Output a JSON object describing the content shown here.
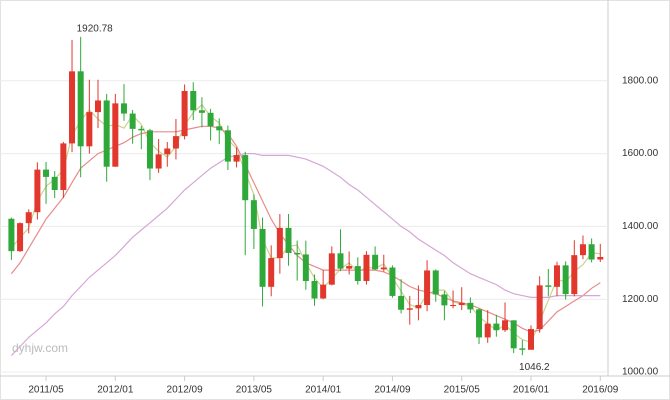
{
  "chart_data": {
    "type": "candlestick",
    "watermark": "dyhjw.com",
    "annotations": [
      "1920.78",
      "1046.2"
    ],
    "categories": [
      null,
      null,
      null,
      null,
      "2011/05",
      null,
      null,
      null,
      null,
      null,
      null,
      null,
      "2012/01",
      null,
      null,
      null,
      null,
      null,
      null,
      null,
      "2012/09",
      null,
      null,
      null,
      null,
      null,
      null,
      null,
      "2013/05",
      null,
      null,
      null,
      null,
      null,
      null,
      null,
      "2014/01",
      null,
      null,
      null,
      null,
      null,
      null,
      null,
      "2014/09",
      null,
      null,
      null,
      null,
      null,
      null,
      null,
      "2015/05",
      null,
      null,
      null,
      null,
      null,
      null,
      null,
      "2016/01",
      null,
      null,
      null,
      null,
      null,
      null,
      null,
      "2016/09"
    ],
    "open": [
      1421,
      1332,
      1409,
      1439,
      1556,
      1536,
      1500,
      1628,
      1826,
      1620,
      1714,
      1746,
      1564,
      1738,
      1710,
      1668,
      1664,
      1559,
      1598,
      1614,
      1648,
      1772,
      1719,
      1712,
      1675,
      1664,
      1578,
      1596,
      1472,
      1393,
      1234,
      1313,
      1396,
      1327,
      1323,
      1250,
      1202,
      1240,
      1326,
      1284,
      1291,
      1250,
      1322,
      1282,
      1287,
      1209,
      1171,
      1175,
      1184,
      1279,
      1213,
      1183,
      1184,
      1190,
      1172,
      1095,
      1133,
      1115,
      1142,
      1065,
      1061,
      1118,
      1238,
      1234,
      1293,
      1214,
      1321,
      1351,
      1309
    ],
    "high": [
      1424,
      1411,
      1447,
      1576,
      1577,
      1552,
      1632,
      1912,
      1920.78,
      1803,
      1803,
      1764,
      1764,
      1791,
      1720,
      1676,
      1668,
      1640,
      1632,
      1695,
      1790,
      1796,
      1755,
      1723,
      1697,
      1677,
      1617,
      1605,
      1488,
      1424,
      1348,
      1434,
      1434,
      1361,
      1361,
      1268,
      1280,
      1345,
      1392,
      1331,
      1315,
      1332,
      1345,
      1322,
      1293,
      1255,
      1209,
      1238,
      1307,
      1282,
      1223,
      1224,
      1233,
      1205,
      1175,
      1170,
      1157,
      1191,
      1142,
      1088,
      1128,
      1263,
      1283,
      1303,
      1304,
      1362,
      1375,
      1367,
      1352
    ],
    "low": [
      1308,
      1330,
      1381,
      1419,
      1462,
      1478,
      1478,
      1604,
      1535,
      1600,
      1670,
      1523,
      1564,
      1690,
      1627,
      1612,
      1527,
      1547,
      1564,
      1584,
      1639,
      1692,
      1672,
      1636,
      1626,
      1555,
      1562,
      1321,
      1338,
      1180,
      1208,
      1270,
      1292,
      1251,
      1226,
      1182,
      1200,
      1238,
      1277,
      1268,
      1240,
      1240,
      1280,
      1276,
      1204,
      1161,
      1130,
      1142,
      1167,
      1193,
      1142,
      1175,
      1170,
      1162,
      1077,
      1080,
      1097,
      1110,
      1052,
      1046.2,
      1062,
      1108,
      1208,
      1208,
      1199,
      1208,
      1310,
      1301,
      1302
    ],
    "close": [
      1332,
      1409,
      1439,
      1556,
      1536,
      1500,
      1628,
      1826,
      1620,
      1714,
      1746,
      1564,
      1738,
      1710,
      1668,
      1664,
      1559,
      1598,
      1614,
      1648,
      1772,
      1719,
      1712,
      1675,
      1664,
      1578,
      1596,
      1472,
      1393,
      1234,
      1313,
      1396,
      1327,
      1323,
      1250,
      1202,
      1240,
      1326,
      1284,
      1291,
      1250,
      1322,
      1282,
      1287,
      1209,
      1171,
      1175,
      1184,
      1279,
      1213,
      1183,
      1184,
      1190,
      1172,
      1095,
      1133,
      1115,
      1142,
      1065,
      1061,
      1118,
      1238,
      1234,
      1293,
      1214,
      1321,
      1351,
      1309,
      1316
    ],
    "up_color": "#e2372c",
    "down_color": "#2fa83a",
    "moving_averages": [
      {
        "color": "#c9d38a",
        "values": [
          1340,
          1370,
          1395,
          1470,
          1510,
          1530,
          1555,
          1650,
          1690,
          1720,
          1695,
          1675,
          1680,
          1670,
          1705,
          1680,
          1630,
          1607,
          1590,
          1620,
          1678,
          1713,
          1734,
          1702,
          1684,
          1639,
          1613,
          1549,
          1487,
          1366,
          1313,
          1314,
          1345,
          1349,
          1300,
          1258,
          1231,
          1256,
          1283,
          1300,
          1275,
          1288,
          1285,
          1297,
          1259,
          1222,
          1185,
          1177,
          1213,
          1225,
          1225,
          1193,
          1186,
          1182,
          1152,
          1133,
          1114,
          1130,
          1107,
          1089,
          1081,
          1139,
          1197,
          1255,
          1247,
          1276,
          1295,
          1327,
          1325
        ]
      },
      {
        "color": "#ea8a8a",
        "values": [
          1270,
          1300,
          1340,
          1380,
          1420,
          1450,
          1480,
          1520,
          1560,
          1580,
          1600,
          1610,
          1620,
          1630,
          1645,
          1655,
          1660,
          1660,
          1660,
          1660,
          1665,
          1670,
          1675,
          1675,
          1670,
          1655,
          1620,
          1570,
          1520,
          1470,
          1420,
          1380,
          1350,
          1320,
          1300,
          1290,
          1280,
          1280,
          1280,
          1280,
          1280,
          1280,
          1280,
          1275,
          1265,
          1250,
          1235,
          1225,
          1220,
          1215,
          1205,
          1195,
          1190,
          1185,
          1175,
          1165,
          1155,
          1145,
          1135,
          1120,
          1110,
          1115,
          1140,
          1165,
          1180,
          1195,
          1210,
          1230,
          1245
        ]
      },
      {
        "color": "#d6a6d6",
        "values": [
          1045,
          1070,
          1095,
          1115,
          1135,
          1160,
          1180,
          1210,
          1235,
          1260,
          1280,
          1300,
          1320,
          1345,
          1370,
          1390,
          1410,
          1430,
          1450,
          1475,
          1500,
          1520,
          1540,
          1560,
          1575,
          1590,
          1595,
          1600,
          1600,
          1595,
          1595,
          1595,
          1595,
          1590,
          1585,
          1575,
          1565,
          1550,
          1535,
          1515,
          1500,
          1480,
          1460,
          1440,
          1420,
          1400,
          1385,
          1365,
          1350,
          1335,
          1320,
          1300,
          1285,
          1270,
          1260,
          1250,
          1240,
          1225,
          1215,
          1210,
          1205,
          1205,
          1205,
          1210,
          1210,
          1210,
          1210,
          1210,
          1210
        ]
      }
    ],
    "ylim": [
      1000,
      2000
    ],
    "yticks": [
      {
        "value": 1000,
        "label": "1000.00"
      },
      {
        "value": 1200,
        "label": "1200.00"
      },
      {
        "value": 1400,
        "label": "1400.00"
      },
      {
        "value": 1600,
        "label": "1600.00"
      },
      {
        "value": 1800,
        "label": "1800.00"
      }
    ],
    "grid": true
  }
}
